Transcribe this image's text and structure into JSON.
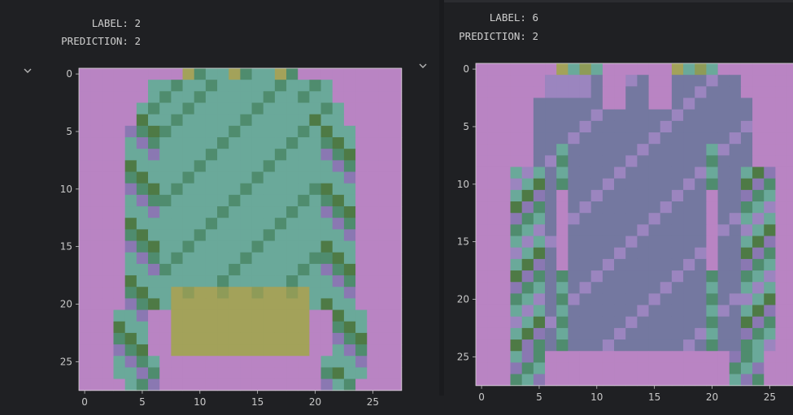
{
  "colors": {
    "background": "#1f2023",
    "tick_text": "#c9c9c9",
    "pink": "#b984c3",
    "purple": "#8a78b2",
    "lavender": "#9b85bf",
    "slate": "#7478a0",
    "teal": "#6aa99a",
    "green": "#4f8c6e",
    "olive": "#8e9b58",
    "khaki": "#a3a25a",
    "darkgreen": "#4e7a45"
  },
  "panels": [
    {
      "label_line": "LABEL: 2",
      "prediction_line": "PREDICTION: 2",
      "collapse_icon": "chevron-down-icon",
      "chart_data": {
        "type": "heatmap",
        "title": "",
        "xlabel": "",
        "ylabel": "",
        "xlim": [
          -0.5,
          27.5
        ],
        "ylim": [
          27.5,
          -0.5
        ],
        "x_ticks": [
          "0",
          "5",
          "10",
          "15",
          "20",
          "25"
        ],
        "y_ticks": [
          "0",
          "5",
          "10",
          "15",
          "20",
          "25"
        ],
        "grid": false,
        "image_rows": 28,
        "image_cols": 28
      }
    },
    {
      "label_line": "LABEL: 6",
      "prediction_line": "PREDICTION: 2",
      "collapse_icon": "chevron-down-icon",
      "chart_data": {
        "type": "heatmap",
        "title": "",
        "xlabel": "",
        "ylabel": "",
        "xlim": [
          -0.5,
          27.5
        ],
        "ylim": [
          27.5,
          -0.5
        ],
        "x_ticks": [
          "0",
          "5",
          "10",
          "15",
          "20",
          "25"
        ],
        "y_ticks": [
          "0",
          "5",
          "10",
          "15",
          "20",
          "25"
        ],
        "grid": false,
        "image_rows": 28,
        "image_cols": 28
      }
    }
  ]
}
